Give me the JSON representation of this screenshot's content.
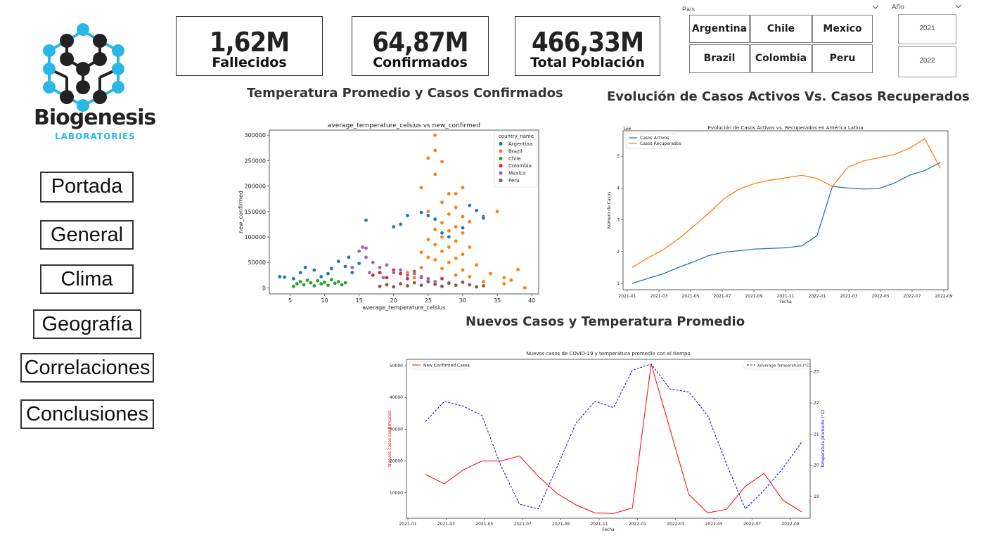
{
  "logo": {
    "name": "Biogenesis",
    "sub": "LABORATORIES"
  },
  "nav": [
    {
      "id": "portada",
      "label": "Portada"
    },
    {
      "id": "general",
      "label": "General"
    },
    {
      "id": "clima",
      "label": "Clima"
    },
    {
      "id": "geografia",
      "label": "Geografía"
    },
    {
      "id": "correlaciones",
      "label": "Correlaciones"
    },
    {
      "id": "conclusiones",
      "label": "Conclusiones"
    }
  ],
  "kpis": [
    {
      "value": "1,62M",
      "label": "Fallecidos"
    },
    {
      "value": "64,87M",
      "label": "Confirmados"
    },
    {
      "value": "466,33M",
      "label": "Total Población"
    }
  ],
  "slicers": {
    "pais": {
      "title": "País",
      "options": [
        "Argentina",
        "Chile",
        "Mexico",
        "Brazil",
        "Colombia",
        "Peru"
      ]
    },
    "anio": {
      "title": "Año",
      "options": [
        "2021",
        "2022"
      ]
    }
  },
  "headings": {
    "scatter": "Temperatura Promedio y Casos Confirmados",
    "activos": "Evolución de Casos Activos Vs. Casos Recuperados",
    "nuevos": "Nuevos Casos y Temperatura Promedio"
  },
  "colors": {
    "accent": "#2ab7e6",
    "dark": "#1e1e1e",
    "active": "#1f77b4",
    "recovered": "#ff7f0e",
    "red": "#ff0000",
    "blue": "#0000ff"
  },
  "chart_data": [
    {
      "type": "scatter",
      "title": "average_temperature_celsius vs new_confirmed",
      "xlabel": "average_temperature_celsius",
      "ylabel": "new_confirmed",
      "xlim": [
        2,
        41
      ],
      "ylim": [
        -12000,
        310000
      ],
      "xticks": [
        "5",
        "10",
        "15",
        "20",
        "25",
        "30",
        "35",
        "40"
      ],
      "yticks": [
        "0",
        "50000",
        "100000",
        "150000",
        "200000",
        "250000",
        "300000"
      ],
      "legend_title": "country_name",
      "legend_position": "top-right",
      "series": [
        {
          "name": "Argentina",
          "color": "#1f77b4",
          "points": [
            [
              3.5,
              22000
            ],
            [
              4.2,
              21000
            ],
            [
              5.5,
              18000
            ],
            [
              6.5,
              30000
            ],
            [
              7.2,
              40000
            ],
            [
              8.5,
              35000
            ],
            [
              9.5,
              22000
            ],
            [
              10.5,
              28000
            ],
            [
              11,
              38000
            ],
            [
              12,
              52000
            ],
            [
              13,
              42000
            ],
            [
              13.5,
              60000
            ],
            [
              14,
              30000
            ],
            [
              15,
              48000
            ],
            [
              16,
              133000
            ],
            [
              20,
              120000
            ],
            [
              21,
              125000
            ],
            [
              22,
              142000
            ],
            [
              24,
              148000
            ],
            [
              25,
              142000
            ],
            [
              26,
              135000
            ],
            [
              27,
              108000
            ],
            [
              31,
              162000
            ],
            [
              32,
              152000
            ],
            [
              33,
              140000
            ],
            [
              33,
              137000
            ],
            [
              30,
              118000
            ],
            [
              28,
              100000
            ]
          ]
        },
        {
          "name": "Brazil",
          "color": "#ff7f0e",
          "points": [
            [
              26,
              300000
            ],
            [
              26,
              270000
            ],
            [
              25,
              255000
            ],
            [
              27,
              248000
            ],
            [
              24,
              197000
            ],
            [
              26,
              223000
            ],
            [
              28,
              185000
            ],
            [
              29,
              185000
            ],
            [
              30,
              197000
            ],
            [
              27,
              168000
            ],
            [
              29,
              158000
            ],
            [
              25,
              150000
            ],
            [
              28,
              145000
            ],
            [
              30,
              140000
            ],
            [
              31,
              130000
            ],
            [
              27,
              128000
            ],
            [
              29,
              120000
            ],
            [
              26,
              115000
            ],
            [
              28,
              112000
            ],
            [
              30,
              108000
            ],
            [
              27,
              100000
            ],
            [
              25,
              95000
            ],
            [
              29,
              92000
            ],
            [
              31,
              80000
            ],
            [
              26,
              85000
            ],
            [
              28,
              80000
            ],
            [
              24,
              70000
            ],
            [
              27,
              72000
            ],
            [
              30,
              66000
            ],
            [
              25,
              60000
            ],
            [
              29,
              58000
            ],
            [
              26,
              55000
            ],
            [
              28,
              50000
            ],
            [
              32,
              45000
            ],
            [
              24,
              40000
            ],
            [
              27,
              38000
            ],
            [
              30,
              35000
            ],
            [
              34,
              28000
            ],
            [
              36,
              20000
            ],
            [
              38,
              36000
            ],
            [
              35,
              150000
            ],
            [
              23,
              20000
            ],
            [
              33,
              12000
            ],
            [
              36,
              8000
            ],
            [
              39,
              0
            ],
            [
              37,
              15000
            ],
            [
              22,
              30000
            ],
            [
              31,
              22000
            ],
            [
              29,
              25000
            ]
          ]
        },
        {
          "name": "Chile",
          "color": "#2ca02c",
          "points": [
            [
              5.5,
              3000
            ],
            [
              6,
              8000
            ],
            [
              6.5,
              12000
            ],
            [
              7,
              6000
            ],
            [
              7.5,
              15000
            ],
            [
              8,
              10000
            ],
            [
              8.5,
              4000
            ],
            [
              9,
              14000
            ],
            [
              9.5,
              8000
            ],
            [
              10,
              11000
            ],
            [
              10.5,
              5000
            ],
            [
              11,
              16000
            ],
            [
              11.5,
              9000
            ],
            [
              12,
              12000
            ],
            [
              12.5,
              6000
            ],
            [
              13,
              10000
            ]
          ]
        },
        {
          "name": "Colombia",
          "color": "#d62728",
          "points": [
            [
              17,
              25000
            ],
            [
              18,
              30000
            ],
            [
              19,
              20000
            ],
            [
              20,
              35000
            ],
            [
              21,
              28000
            ],
            [
              22,
              18000
            ],
            [
              23,
              32000
            ],
            [
              24,
              22000
            ],
            [
              25,
              15000
            ],
            [
              26,
              12000
            ],
            [
              27,
              18000
            ],
            [
              28,
              10000
            ]
          ]
        },
        {
          "name": "Mexico",
          "color": "#9467bd",
          "points": [
            [
              14,
              40000
            ],
            [
              15,
              72000
            ],
            [
              15.5,
              80000
            ],
            [
              16,
              78000
            ],
            [
              16,
              60000
            ],
            [
              17,
              50000
            ],
            [
              18,
              40000
            ],
            [
              19,
              45000
            ],
            [
              20,
              30000
            ],
            [
              21,
              35000
            ],
            [
              22,
              25000
            ],
            [
              23,
              28000
            ],
            [
              24,
              20000
            ],
            [
              25,
              18000
            ],
            [
              26,
              12000
            ],
            [
              16.5,
              30000
            ],
            [
              18.5,
              20000
            ]
          ]
        },
        {
          "name": "Peru",
          "color": "#8c564b",
          "points": [
            [
              18,
              3000
            ],
            [
              19,
              6000
            ],
            [
              20,
              2000
            ],
            [
              21,
              8000
            ],
            [
              22,
              4000
            ],
            [
              23,
              10000
            ],
            [
              24,
              5000
            ],
            [
              25,
              12000
            ],
            [
              26,
              7000
            ],
            [
              27,
              3000
            ],
            [
              28,
              9000
            ],
            [
              29,
              5000
            ],
            [
              30,
              11000
            ],
            [
              31,
              6000
            ],
            [
              32,
              2000
            ],
            [
              33,
              4000
            ]
          ]
        }
      ]
    },
    {
      "type": "line",
      "title": "Evolución de Casos Activos vs. Recuperados en América Latina",
      "xlabel": "Fecha",
      "ylabel": "Número de Casos",
      "yscale_label": "1e6",
      "ylim": [
        0.8,
        5.8
      ],
      "yticks": [
        "1",
        "2",
        "3",
        "4",
        "5"
      ],
      "xticks": [
        "2021-01",
        "2021-03",
        "2021-05",
        "2021-07",
        "2021-09",
        "2021-11",
        "2022-01",
        "2022-03",
        "2022-05",
        "2022-07",
        "2022-09"
      ],
      "legend_position": "top-left",
      "series": [
        {
          "name": "Casos Activos",
          "color": "#1f77b4",
          "values": [
            1.0,
            1.15,
            1.3,
            1.5,
            1.68,
            1.88,
            1.98,
            2.03,
            2.08,
            2.1,
            2.12,
            2.18,
            2.5,
            4.05,
            4.0,
            3.97,
            3.98,
            4.15,
            4.4,
            4.55,
            4.8
          ]
        },
        {
          "name": "Casos Recuperados",
          "color": "#ff7f0e",
          "values": [
            1.5,
            1.8,
            2.05,
            2.4,
            2.8,
            3.22,
            3.68,
            3.98,
            4.15,
            4.25,
            4.32,
            4.4,
            4.3,
            4.05,
            4.65,
            4.85,
            4.95,
            5.05,
            5.25,
            5.55,
            4.62
          ]
        }
      ]
    },
    {
      "type": "line",
      "title": "Nuevos casos de COVID-19 y temperatura promedio con el tiempo",
      "xlabel": "Fecha",
      "ylabel_left": "Nuevos casos confirmados",
      "ylabel_right": "Temperatura promedio (°C)",
      "xticks": [
        "2021-01",
        "2021-03",
        "2021-05",
        "2021-07",
        "2021-09",
        "2021-11",
        "2022-01",
        "2022-03",
        "2022-05",
        "2022-07",
        "2022-09"
      ],
      "yticks_left": [
        "10000",
        "20000",
        "30000",
        "40000",
        "50000"
      ],
      "yticks_right": [
        "19",
        "20",
        "21",
        "22",
        "23"
      ],
      "ylim_left": [
        2000,
        52000
      ],
      "ylim_right": [
        18.3,
        23.4
      ],
      "series": [
        {
          "name": "New Confirmed Cases",
          "color": "#ff0000",
          "axis": "left",
          "style": "solid",
          "legend_position": "top-left",
          "values": [
            15800,
            12800,
            17200,
            20000,
            20000,
            21600,
            15200,
            9800,
            6200,
            3700,
            3500,
            5200,
            50500,
            30000,
            9500,
            3700,
            4800,
            12000,
            16100,
            7700,
            4000
          ]
        },
        {
          "name": "Adverage Temperature (°C)",
          "color": "#0000ff",
          "axis": "right",
          "style": "dashed",
          "legend_position": "top-right",
          "values": [
            21.4,
            22.05,
            21.9,
            21.6,
            20.0,
            18.75,
            18.6,
            19.95,
            21.35,
            22.05,
            21.85,
            23.05,
            23.25,
            22.45,
            22.35,
            21.6,
            20.05,
            18.6,
            19.2,
            19.9,
            20.75
          ]
        }
      ]
    }
  ]
}
